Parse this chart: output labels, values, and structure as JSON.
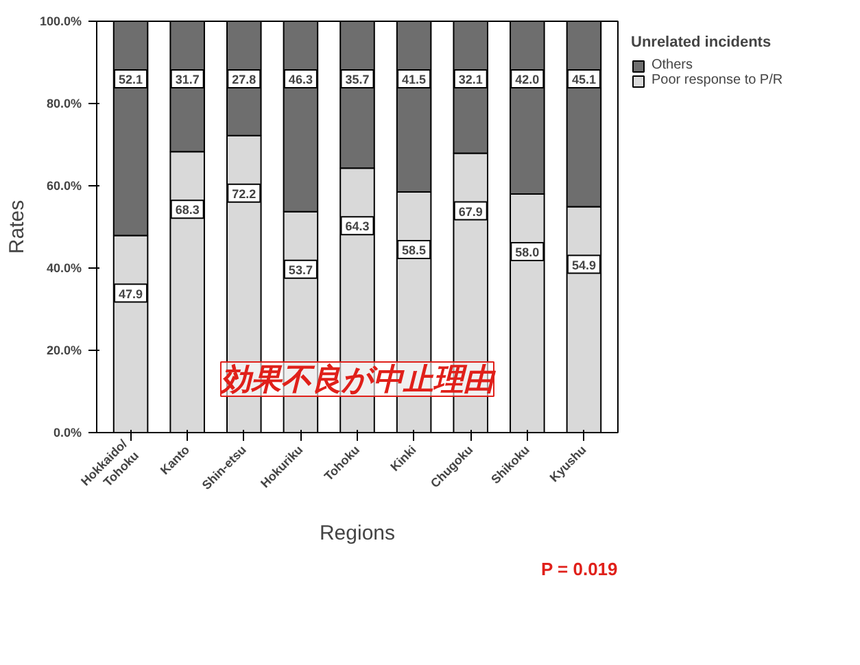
{
  "chart_data": {
    "type": "bar",
    "stacked": true,
    "xlabel": "Regions",
    "ylabel": "Rates",
    "legend_title": "Unrelated incidents",
    "categories": [
      "Hokkaido/\nTohoku",
      "Kanto",
      "Shin-etsu",
      "Hokuriku",
      "Tohoku",
      "Kinki",
      "Chugoku",
      "Shikoku",
      "Kyushu"
    ],
    "series": [
      {
        "name": "Poor response to P/R",
        "color": "#d9d9d9",
        "values": [
          47.9,
          68.3,
          72.2,
          53.7,
          64.3,
          58.5,
          67.9,
          58.0,
          54.9
        ],
        "value_labels": [
          "47.9",
          "68.3",
          "72.2",
          "53.7",
          "64.3",
          "58.5",
          "67.9",
          "58.0",
          "54.9"
        ]
      },
      {
        "name": "Others",
        "color": "#6e6e6e",
        "values": [
          52.1,
          31.7,
          27.8,
          46.3,
          35.7,
          41.5,
          32.1,
          42.0,
          45.1
        ],
        "value_labels": [
          "52.1",
          "31.7",
          "27.8",
          "46.3",
          "35.7",
          "41.5",
          "32.1",
          "42.0",
          "45.1"
        ]
      }
    ],
    "ylim": [
      0,
      100
    ],
    "yticks": [
      {
        "value": 0,
        "label": "0.0%"
      },
      {
        "value": 20,
        "label": "20.0%"
      },
      {
        "value": 40,
        "label": "40.0%"
      },
      {
        "value": 60,
        "label": "60.0%"
      },
      {
        "value": 80,
        "label": "80.0%"
      },
      {
        "value": 100,
        "label": "100.0%"
      }
    ],
    "grid": false,
    "legend": "top right",
    "annotations": [
      "効果不良が中止理由",
      "P = 0.019"
    ]
  }
}
